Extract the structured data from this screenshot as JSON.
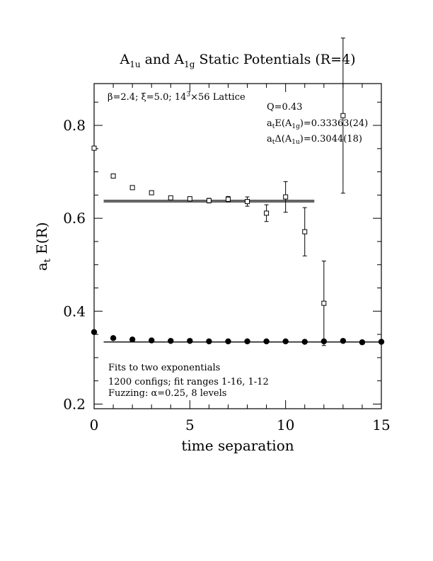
{
  "chart_data": {
    "type": "scatter",
    "title": {
      "parts": [
        {
          "text": "A",
          "sub": "1u"
        },
        {
          "text": " and A",
          "sub": "1g"
        },
        {
          "text": " Static Potentials (R=4)",
          "sub": ""
        }
      ]
    },
    "xlabel": "time separation",
    "ylabel": {
      "main": "a",
      "sub": "t",
      "rest": " E(R)"
    },
    "xlim": [
      0,
      15
    ],
    "ylim": [
      0.19,
      0.89
    ],
    "xticks": [
      0,
      5,
      10,
      15
    ],
    "xtick_labels": [
      "0",
      "5",
      "10",
      "15"
    ],
    "yticks": [
      0.2,
      0.4,
      0.6,
      0.8
    ],
    "ytick_labels": [
      "0.2",
      "0.4",
      "0.6",
      "0.8"
    ],
    "lattice_label": {
      "beta": "β=2.4;",
      "xi": "ξ=5.0;",
      "size": "14",
      "sup": "3",
      "rest": "×56 Lattice"
    },
    "fit_info": {
      "q": "Q=0.43",
      "energy": {
        "a": "a",
        "a_sub": "t",
        "pre": "E(A",
        "sub": "1g",
        "post": ")=0.33363(24)"
      },
      "gap": {
        "a": "a",
        "a_sub": "t",
        "pre": "Δ(A",
        "sub": "1u",
        "post": ")=0.3044(18)"
      }
    },
    "notes": [
      "Fits to two exponentials",
      "1200 configs; fit ranges 1-16, 1-12",
      "Fuzzing: α=0.25, 8 levels"
    ],
    "series": [
      {
        "marker": "open-square",
        "points": [
          {
            "x": 0,
            "y": 0.751,
            "err": 0.002
          },
          {
            "x": 1,
            "y": 0.691,
            "err": 0.002
          },
          {
            "x": 2,
            "y": 0.666,
            "err": 0.002
          },
          {
            "x": 3,
            "y": 0.655,
            "err": 0.003
          },
          {
            "x": 4,
            "y": 0.644,
            "err": 0.003
          },
          {
            "x": 5,
            "y": 0.642,
            "err": 0.004
          },
          {
            "x": 6,
            "y": 0.638,
            "err": 0.005
          },
          {
            "x": 7,
            "y": 0.641,
            "err": 0.006
          },
          {
            "x": 8,
            "y": 0.636,
            "err": 0.01
          },
          {
            "x": 9,
            "y": 0.611,
            "err": 0.018
          },
          {
            "x": 10,
            "y": 0.646,
            "err": 0.033
          },
          {
            "x": 11,
            "y": 0.571,
            "err": 0.052
          },
          {
            "x": 12,
            "y": 0.417,
            "err": 0.091
          },
          {
            "x": 13,
            "y": 0.821,
            "err": 0.167
          }
        ],
        "fit_band": {
          "x_start": 0.5,
          "x_end": 11.5,
          "y_low": 0.6353,
          "y_high": 0.6385
        }
      },
      {
        "marker": "filled-circle",
        "points": [
          {
            "x": 0,
            "y": 0.355
          },
          {
            "x": 1,
            "y": 0.342
          },
          {
            "x": 2,
            "y": 0.339
          },
          {
            "x": 3,
            "y": 0.337
          },
          {
            "x": 4,
            "y": 0.336
          },
          {
            "x": 5,
            "y": 0.336
          },
          {
            "x": 6,
            "y": 0.335
          },
          {
            "x": 7,
            "y": 0.335
          },
          {
            "x": 8,
            "y": 0.335
          },
          {
            "x": 9,
            "y": 0.335
          },
          {
            "x": 10,
            "y": 0.335
          },
          {
            "x": 11,
            "y": 0.334
          },
          {
            "x": 12,
            "y": 0.335
          },
          {
            "x": 13,
            "y": 0.336
          },
          {
            "x": 14,
            "y": 0.333
          },
          {
            "x": 15,
            "y": 0.334
          }
        ],
        "fit_line": {
          "x_start": 0.5,
          "x_end": 15,
          "y": 0.33363
        }
      }
    ]
  }
}
